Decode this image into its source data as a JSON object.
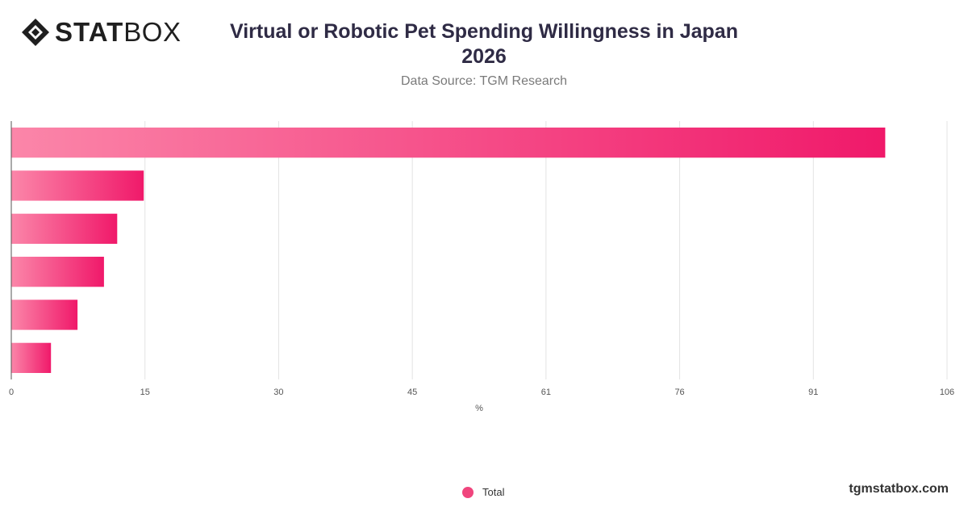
{
  "brand": {
    "logo_bold": "STAT",
    "logo_light": "BOX",
    "site": "tgmstatbox.com"
  },
  "header": {
    "title_line1": "Virtual or Robotic Pet Spending Willingness in Japan",
    "title_line2": "2026",
    "subtitle": "Data Source: TGM Research"
  },
  "legend": {
    "label": "Total",
    "color": "#f0457d"
  },
  "chart_data": {
    "type": "bar",
    "orientation": "horizontal",
    "title": "Virtual or Robotic Pet Spending Willingness in Japan 2026",
    "subtitle": "Data Source: TGM Research",
    "xlabel": "%",
    "ylabel": "",
    "categories": [
      "",
      "",
      "",
      "",
      "",
      ""
    ],
    "series": [
      {
        "name": "Total",
        "values": [
          99,
          15,
          12,
          10.5,
          7.5,
          4.5
        ]
      }
    ],
    "xlim": [
      0,
      106
    ],
    "x_ticks": [
      "0",
      "15",
      "30",
      "45",
      "61",
      "76",
      "91",
      "106"
    ],
    "grid": true,
    "legend_position": "bottom",
    "colors": {
      "bar_start": "#fb86a9",
      "bar_end": "#f0196a"
    }
  }
}
